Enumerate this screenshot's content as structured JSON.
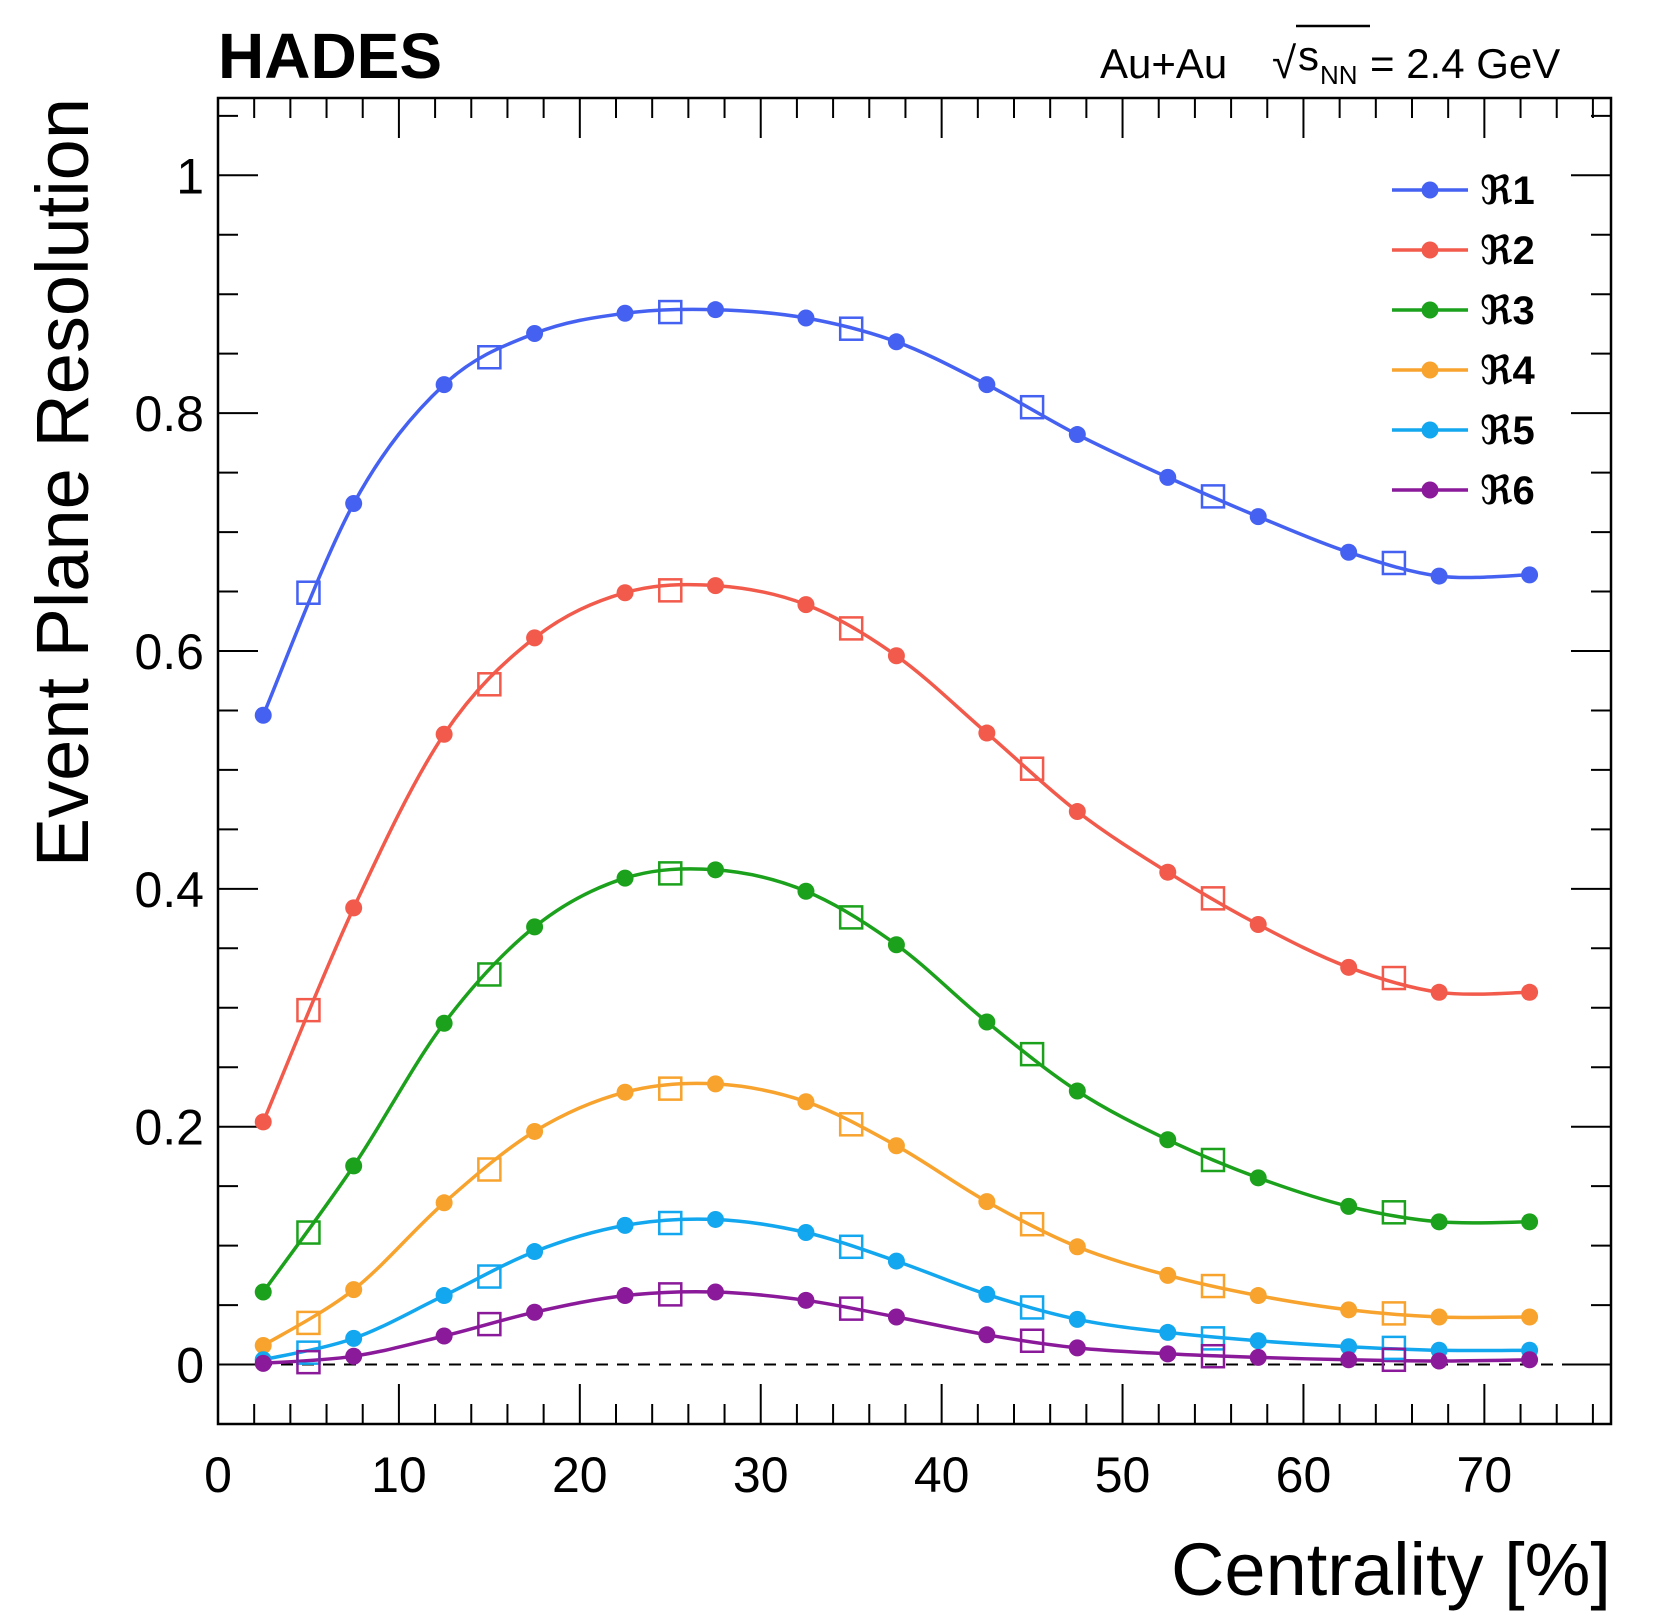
{
  "chart_data": {
    "type": "line",
    "experiment": "HADES",
    "system": {
      "prefix": "Au+Au ",
      "sqrt_symbol": "√",
      "s": "s",
      "subscript": "NN",
      "suffix": " = 2.4 GeV"
    },
    "xlabel": "Centrality [%]",
    "ylabel": "Event Plane Resolution",
    "xlim": [
      0,
      77
    ],
    "ylim": [
      -0.05,
      1.065
    ],
    "x_ticks": [
      0,
      10,
      20,
      30,
      40,
      50,
      60,
      70
    ],
    "x_tick_labels": [
      "0",
      "10",
      "20",
      "30",
      "40",
      "50",
      "60",
      "70"
    ],
    "y_ticks": [
      0,
      0.2,
      0.4,
      0.6,
      0.8,
      1
    ],
    "y_tick_labels": [
      "0",
      "0.2",
      "0.4",
      "0.6",
      "0.8",
      "1"
    ],
    "reference_line": 0,
    "legend_symbol": "ℜ",
    "legend_position": "top-right",
    "series_x": [
      2.5,
      7.5,
      12.5,
      17.5,
      22.5,
      27.5,
      32.5,
      37.5,
      42.5,
      47.5,
      52.5,
      57.5,
      62.5,
      67.5,
      72.5
    ],
    "open_x": [
      5,
      15,
      25,
      35,
      45,
      55,
      65
    ],
    "series": [
      {
        "name": "1",
        "color": "#4461f2",
        "values": [
          0.546,
          0.724,
          0.824,
          0.867,
          0.884,
          0.887,
          0.88,
          0.86,
          0.824,
          0.782,
          0.746,
          0.713,
          0.683,
          0.663,
          0.664
        ],
        "open_values": [
          0.649,
          0.847,
          0.885,
          0.871,
          0.805,
          0.73,
          0.674
        ]
      },
      {
        "name": "2",
        "color": "#f25a4b",
        "values": [
          0.204,
          0.384,
          0.53,
          0.611,
          0.649,
          0.655,
          0.639,
          0.596,
          0.531,
          0.465,
          0.414,
          0.37,
          0.334,
          0.313,
          0.313
        ],
        "open_values": [
          0.298,
          0.572,
          0.651,
          0.619,
          0.501,
          0.392,
          0.325
        ]
      },
      {
        "name": "3",
        "color": "#1ba11b",
        "values": [
          0.061,
          0.167,
          0.287,
          0.368,
          0.409,
          0.416,
          0.398,
          0.353,
          0.288,
          0.23,
          0.189,
          0.157,
          0.133,
          0.12,
          0.12
        ],
        "open_values": [
          0.111,
          0.328,
          0.413,
          0.376,
          0.261,
          0.172,
          0.128
        ]
      },
      {
        "name": "4",
        "color": "#f7a32d",
        "values": [
          0.016,
          0.063,
          0.136,
          0.196,
          0.229,
          0.236,
          0.221,
          0.184,
          0.137,
          0.099,
          0.075,
          0.058,
          0.046,
          0.04,
          0.04
        ],
        "open_values": [
          0.035,
          0.164,
          0.232,
          0.202,
          0.118,
          0.066,
          0.043
        ]
      },
      {
        "name": "5",
        "color": "#12a7ee",
        "values": [
          0.004,
          0.022,
          0.058,
          0.095,
          0.117,
          0.122,
          0.111,
          0.087,
          0.059,
          0.038,
          0.027,
          0.02,
          0.015,
          0.012,
          0.012
        ],
        "open_values": [
          0.01,
          0.074,
          0.119,
          0.099,
          0.048,
          0.022,
          0.014
        ]
      },
      {
        "name": "6",
        "color": "#8b1a9a",
        "values": [
          0.001,
          0.007,
          0.024,
          0.044,
          0.058,
          0.061,
          0.054,
          0.04,
          0.025,
          0.014,
          0.009,
          0.006,
          0.004,
          0.003,
          0.004
        ],
        "open_values": [
          0.002,
          0.034,
          0.059,
          0.047,
          0.02,
          0.007,
          0.004
        ]
      }
    ]
  }
}
